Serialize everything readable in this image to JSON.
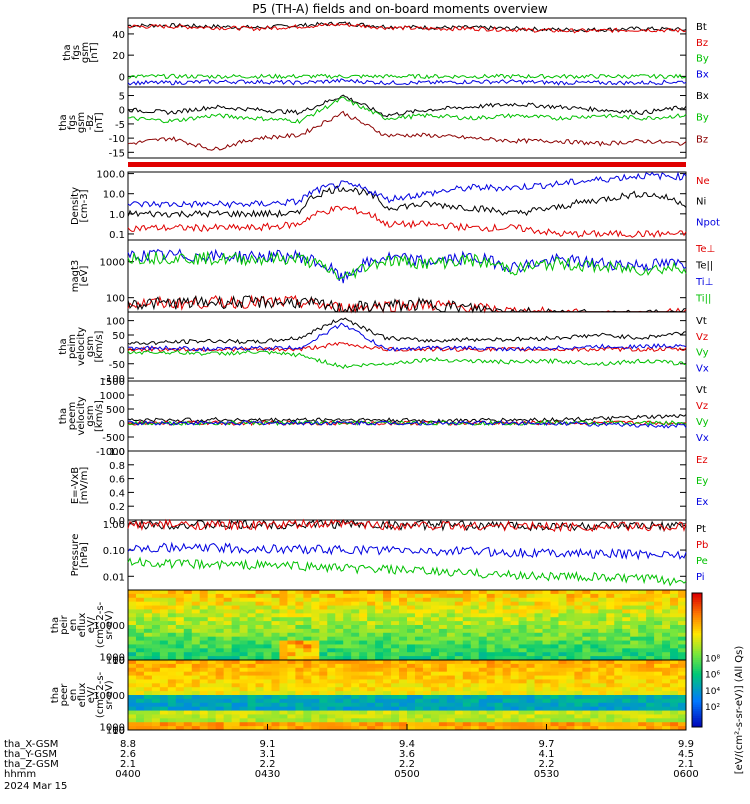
{
  "title": "P5 (TH-A) fields and on-board moments overview",
  "colors": {
    "black": "#000000",
    "red": "#e00000",
    "green": "#00c000",
    "blue": "#0000e0",
    "darkred": "#8b0000"
  },
  "chart_data": [
    {
      "type": "line",
      "ylabel": [
        "tha",
        "fgs",
        "gsm",
        "[nT]"
      ],
      "yticks": [
        "0",
        "20",
        "40"
      ],
      "ylim": [
        -10,
        55
      ],
      "series": [
        {
          "name": "Bt",
          "color": "black",
          "values": [
            48,
            48,
            47,
            46,
            48,
            50,
            47,
            46,
            46,
            45,
            44,
            44,
            45,
            44
          ]
        },
        {
          "name": "Bz",
          "color": "red",
          "values": [
            47,
            47,
            46,
            45,
            47,
            49,
            46,
            45,
            45,
            44,
            43,
            43,
            44,
            43
          ]
        },
        {
          "name": "By",
          "color": "green",
          "values": [
            0,
            0,
            0,
            0,
            0,
            0,
            0,
            0,
            0,
            0,
            0,
            0,
            0,
            0
          ]
        },
        {
          "name": "Bx",
          "color": "blue",
          "values": [
            -6,
            -6,
            -5,
            -5,
            -6,
            -4,
            -6,
            -6,
            -5,
            -5,
            -6,
            -6,
            -6,
            -5
          ]
        }
      ]
    },
    {
      "type": "line",
      "ylabel": [
        "tha",
        "fgs",
        "gsm",
        "-Bz",
        "[nT]"
      ],
      "yticks": [
        "-15",
        "-10",
        "-5",
        "0",
        "5"
      ],
      "ylim": [
        -17,
        8
      ],
      "series": [
        {
          "name": "Bx",
          "color": "black",
          "values": [
            0,
            -1,
            1,
            0,
            -1,
            5,
            -2,
            0,
            1,
            2,
            1,
            0,
            -1,
            1
          ]
        },
        {
          "name": "By",
          "color": "green",
          "values": [
            -3,
            -4,
            -2,
            -3,
            -4,
            4,
            -3,
            -2,
            -3,
            -2,
            -3,
            -2,
            -3,
            -2
          ]
        },
        {
          "name": "Bz",
          "color": "darkred",
          "values": [
            -12,
            -10,
            -14,
            -10,
            -9,
            -1,
            -9,
            -9,
            -10,
            -11,
            -11,
            -12,
            -11,
            -12
          ]
        }
      ]
    },
    {
      "type": "line",
      "logscale": true,
      "ylabel": [
        "Density",
        "[cm-3]"
      ],
      "yticks": [
        "0.1",
        "1.0",
        "10.0",
        "100.0"
      ],
      "ylim": [
        0.05,
        120
      ],
      "series": [
        {
          "name": "Ne",
          "color": "red",
          "values": [
            0.2,
            0.2,
            0.2,
            0.2,
            0.3,
            2,
            0.3,
            0.3,
            0.2,
            0.2,
            0.1,
            0.1,
            0.1,
            0.1
          ]
        },
        {
          "name": "Ni",
          "color": "black",
          "values": [
            1,
            1,
            1,
            1,
            1,
            20,
            2,
            3,
            2,
            1,
            2,
            5,
            10,
            3
          ]
        },
        {
          "name": "Npot",
          "color": "blue",
          "values": [
            3,
            3,
            3,
            3,
            4,
            30,
            5,
            10,
            20,
            20,
            30,
            50,
            80,
            70
          ]
        }
      ]
    },
    {
      "type": "line",
      "logscale": true,
      "ylabel": [
        "magt3",
        "[eV]"
      ],
      "yticks": [
        "100",
        "1000"
      ],
      "ylim": [
        40,
        4000
      ],
      "series": [
        {
          "name": "Te⊥",
          "color": "red",
          "values": [
            70,
            70,
            75,
            75,
            75,
            50,
            60,
            65,
            50,
            40,
            35,
            30,
            30,
            35
          ]
        },
        {
          "name": "Te||",
          "color": "black",
          "values": [
            70,
            70,
            75,
            75,
            75,
            50,
            60,
            65,
            50,
            40,
            35,
            30,
            30,
            35
          ]
        },
        {
          "name": "Ti⊥",
          "color": "blue",
          "values": [
            1500,
            1500,
            1400,
            1400,
            1400,
            300,
            1300,
            1000,
            1300,
            700,
            1100,
            900,
            800,
            900
          ]
        },
        {
          "name": "Ti||",
          "color": "green",
          "values": [
            1300,
            1300,
            1200,
            1200,
            1200,
            300,
            1100,
            900,
            1100,
            600,
            900,
            700,
            600,
            700
          ]
        }
      ]
    },
    {
      "type": "line",
      "ylabel": [
        "tha",
        "peim",
        "velocity",
        "gsm",
        "[km/s]"
      ],
      "yticks": [
        "-100",
        "-50",
        "0",
        "50",
        "100"
      ],
      "ylim": [
        -110,
        130
      ],
      "series": [
        {
          "name": "Vt",
          "color": "black",
          "values": [
            20,
            25,
            30,
            25,
            40,
            110,
            40,
            30,
            35,
            35,
            40,
            50,
            40,
            60
          ]
        },
        {
          "name": "Vz",
          "color": "red",
          "values": [
            0,
            0,
            0,
            0,
            0,
            20,
            0,
            0,
            0,
            0,
            0,
            0,
            0,
            0
          ]
        },
        {
          "name": "Vy",
          "color": "green",
          "values": [
            -10,
            -10,
            -15,
            -10,
            -20,
            -60,
            -50,
            -35,
            -40,
            -45,
            -40,
            -50,
            -40,
            -50
          ]
        },
        {
          "name": "Vx",
          "color": "blue",
          "values": [
            5,
            5,
            0,
            5,
            5,
            90,
            0,
            5,
            5,
            0,
            5,
            10,
            10,
            15
          ]
        }
      ]
    },
    {
      "type": "line",
      "ylabel": [
        "tha",
        "peem",
        "velocity",
        "gsm",
        "[km/s]"
      ],
      "yticks": [
        "-1000",
        "-500",
        "0",
        "500",
        "1000",
        "1500"
      ],
      "ylim": [
        -1000,
        1500
      ],
      "series": [
        {
          "name": "Vt",
          "color": "black",
          "values": [
            100,
            100,
            120,
            100,
            110,
            120,
            100,
            80,
            90,
            110,
            120,
            150,
            200,
            250
          ]
        },
        {
          "name": "Vz",
          "color": "red",
          "values": [
            0,
            0,
            0,
            0,
            0,
            0,
            0,
            0,
            0,
            0,
            0,
            0,
            0,
            0
          ]
        },
        {
          "name": "Vy",
          "color": "green",
          "values": [
            0,
            0,
            0,
            0,
            0,
            0,
            0,
            0,
            0,
            0,
            0,
            0,
            0,
            0
          ]
        },
        {
          "name": "Vx",
          "color": "blue",
          "values": [
            0,
            0,
            0,
            0,
            0,
            0,
            0,
            0,
            0,
            0,
            0,
            -50,
            -100,
            -100
          ]
        }
      ]
    },
    {
      "type": "line",
      "ylabel": [
        "E=-VxB",
        "[mV/m]"
      ],
      "yticks": [
        "0.0",
        "0.2",
        "0.4",
        "0.6",
        "0.8",
        "1.0"
      ],
      "ylim": [
        0,
        1
      ],
      "series": [
        {
          "name": "Ez",
          "color": "red",
          "values": []
        },
        {
          "name": "Ey",
          "color": "green",
          "values": []
        },
        {
          "name": "Ex",
          "color": "blue",
          "values": []
        }
      ]
    },
    {
      "type": "line",
      "logscale": true,
      "ylabel": [
        "Pressure",
        "[nPa]"
      ],
      "yticks": [
        "0.01",
        "0.10",
        "1.00"
      ],
      "ylim": [
        0.003,
        1.4
      ],
      "series": [
        {
          "name": "Pt",
          "color": "black",
          "values": [
            0.95,
            0.95,
            0.9,
            0.9,
            0.95,
            1.0,
            0.9,
            0.9,
            0.85,
            0.85,
            0.8,
            0.8,
            0.8,
            0.8
          ]
        },
        {
          "name": "Pb",
          "color": "red",
          "values": [
            0.93,
            0.93,
            0.88,
            0.88,
            0.93,
            0.98,
            0.88,
            0.88,
            0.83,
            0.83,
            0.78,
            0.78,
            0.78,
            0.78
          ]
        },
        {
          "name": "Pe",
          "color": "green",
          "values": [
            0.035,
            0.03,
            0.028,
            0.027,
            0.025,
            0.02,
            0.018,
            0.015,
            0.013,
            0.011,
            0.01,
            0.009,
            0.008,
            0.006
          ]
        },
        {
          "name": "Pi",
          "color": "blue",
          "values": [
            0.13,
            0.12,
            0.12,
            0.11,
            0.11,
            0.1,
            0.1,
            0.09,
            0.09,
            0.08,
            0.08,
            0.07,
            0.07,
            0.07
          ]
        }
      ]
    },
    {
      "type": "heatmap",
      "ylabel": [
        "tha",
        "peir",
        "en",
        "eflux",
        "eV/",
        "(cm^2-s-",
        "sr-eV)"
      ],
      "yticks": [
        "10",
        "100",
        "1000",
        "10000"
      ],
      "ylim": [
        5,
        20000
      ]
    },
    {
      "type": "heatmap",
      "ylabel": [
        "tha",
        "peer",
        "en",
        "eflux",
        "eV/",
        "(cm^2-s-",
        "sr-eV)"
      ],
      "yticks": [
        "10",
        "100",
        "1000",
        "10000"
      ],
      "ylim": [
        5,
        20000
      ]
    }
  ],
  "colorbar": {
    "label": "[eV/(cm²-s-sr-eV)] (All Qs)",
    "ticks": [
      "10²",
      "10⁴",
      "10⁶",
      "10⁸"
    ],
    "ticks2": [
      "10²",
      "10⁴",
      "10⁶",
      "10⁸"
    ]
  },
  "xaxis": {
    "rows": [
      {
        "label": "tha_X-GSM",
        "values": [
          "8.8",
          "9.1",
          "9.4",
          "9.7",
          "9.9"
        ]
      },
      {
        "label": "tha_Y-GSM",
        "values": [
          "2.6",
          "3.1",
          "3.6",
          "4.1",
          "4.5"
        ]
      },
      {
        "label": "tha_Z-GSM",
        "values": [
          "2.1",
          "2.2",
          "2.2",
          "2.2",
          "2.1"
        ]
      },
      {
        "label": "hhmm",
        "values": [
          "0400",
          "0430",
          "0500",
          "0530",
          "0600"
        ]
      }
    ],
    "date": "2024 Mar 15"
  }
}
